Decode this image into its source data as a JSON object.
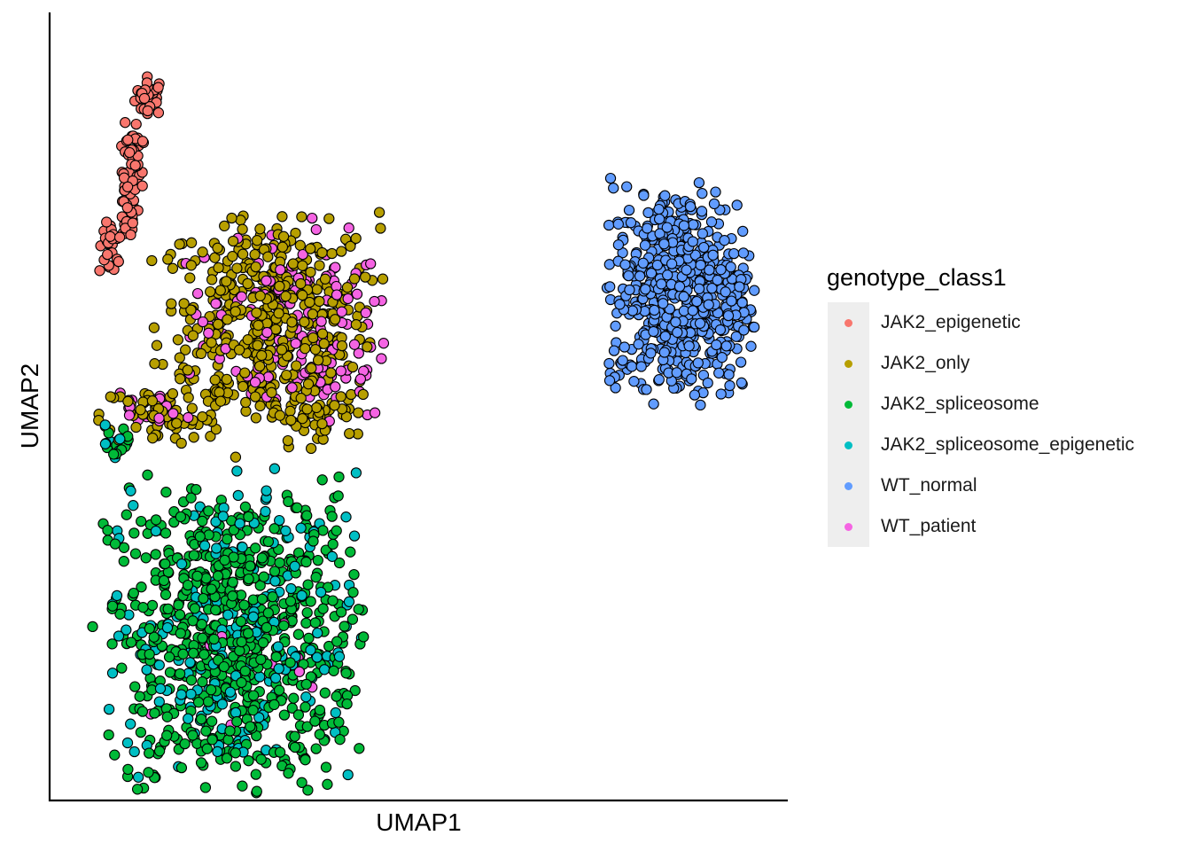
{
  "chart_data": {
    "type": "scatter",
    "title": "",
    "xlabel": "UMAP1",
    "ylabel": "UMAP2",
    "xlim": [
      0,
      100
    ],
    "ylim": [
      0,
      100
    ],
    "grid": false,
    "ticks": false,
    "legend_placement": "right",
    "legend_title": "genotype_class1",
    "series": [
      {
        "name": "JAK2_epigenetic",
        "color": "#F8766D",
        "clusters": [
          {
            "x": 13.6,
            "y": 89.5,
            "sx": 1.0,
            "sy": 1.2,
            "n": 30
          },
          {
            "x": 11.4,
            "y": 80.0,
            "sx": 0.8,
            "sy": 2.5,
            "n": 35
          },
          {
            "x": 10.5,
            "y": 74.5,
            "sx": 0.6,
            "sy": 2.0,
            "n": 22
          },
          {
            "x": 8.3,
            "y": 70.0,
            "sx": 0.8,
            "sy": 1.8,
            "n": 24
          },
          {
            "x": 11.0,
            "y": 84.5,
            "sx": 0.5,
            "sy": 1.5,
            "n": 10
          }
        ]
      },
      {
        "name": "JAK2_only",
        "color": "#B79F00",
        "clusters": [
          {
            "x": 29.5,
            "y": 60.5,
            "sx": 7.5,
            "sy": 7.0,
            "n": 470
          },
          {
            "x": 15.0,
            "y": 49.0,
            "sx": 4.0,
            "sy": 2.0,
            "n": 60
          },
          {
            "x": 36.0,
            "y": 49.0,
            "sx": 3.0,
            "sy": 2.5,
            "n": 40
          }
        ]
      },
      {
        "name": "JAK2_spliceosome",
        "color": "#00BA38",
        "clusters": [
          {
            "x": 25.0,
            "y": 20.5,
            "sx": 8.5,
            "sy": 10.0,
            "n": 700
          },
          {
            "x": 9.0,
            "y": 45.0,
            "sx": 1.2,
            "sy": 1.5,
            "n": 12
          }
        ]
      },
      {
        "name": "JAK2_spliceosome_epigenetic",
        "color": "#00BFC4",
        "clusters": [
          {
            "x": 24.5,
            "y": 21.5,
            "sx": 8.5,
            "sy": 10.0,
            "n": 210
          },
          {
            "x": 9.0,
            "y": 45.5,
            "sx": 1.0,
            "sy": 1.2,
            "n": 10
          }
        ]
      },
      {
        "name": "WT_normal",
        "color": "#619CFF",
        "clusters": [
          {
            "x": 85.5,
            "y": 64.5,
            "sx": 4.8,
            "sy": 6.8,
            "n": 580
          }
        ]
      },
      {
        "name": "WT_patient",
        "color": "#F564E3",
        "clusters": [
          {
            "x": 33.0,
            "y": 60.0,
            "sx": 7.0,
            "sy": 6.5,
            "n": 150
          },
          {
            "x": 14.5,
            "y": 49.5,
            "sx": 2.5,
            "sy": 1.2,
            "n": 18
          },
          {
            "x": 24.0,
            "y": 20.0,
            "sx": 7.5,
            "sy": 8.0,
            "n": 12
          }
        ]
      }
    ]
  }
}
